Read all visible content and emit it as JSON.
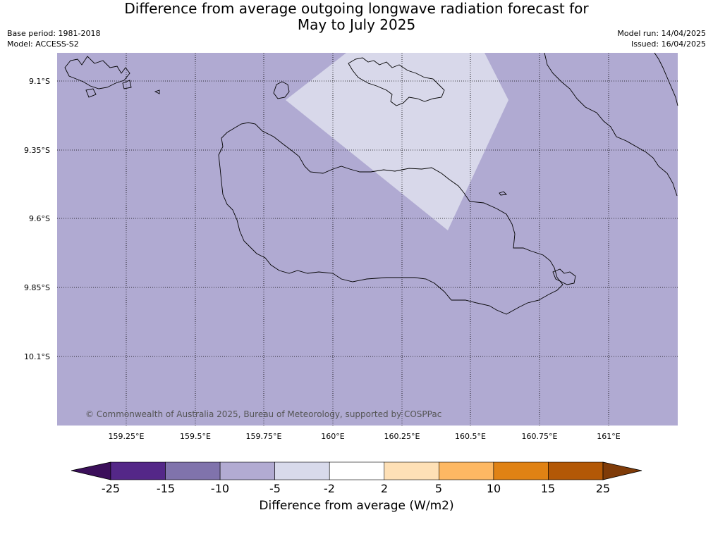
{
  "title": {
    "line1": "Difference from average outgoing longwave radiation forecast for",
    "line2": "May to July 2025"
  },
  "meta": {
    "base_period": "Base period: 1981-2018",
    "model": "Model: ACCESS-S2",
    "model_run": "Model run: 14/04/2025",
    "issued": "Issued: 16/04/2025"
  },
  "map": {
    "lat_ticks": [
      "9.1°S",
      "9.35°S",
      "9.6°S",
      "9.85°S",
      "10.1°S"
    ],
    "lon_ticks": [
      "159.25°E",
      "159.5°E",
      "159.75°E",
      "160°E",
      "160.25°E",
      "160.5°E",
      "160.75°E",
      "161°E"
    ],
    "background_category": "-10 to -5",
    "background_color": "#b0aad2",
    "anomaly_patch_category": "-5 to -2",
    "anomaly_patch_color": "#d8d8ea",
    "copyright": "© Commonwealth of Australia 2025, Bureau of Meteorology, supported by COSPPac"
  },
  "colorbar": {
    "label": "Difference from average (W/m2)",
    "ticks": [
      "-25",
      "-15",
      "-10",
      "-5",
      "-2",
      "2",
      "5",
      "10",
      "15",
      "25"
    ],
    "under_color": "#3b0f5a",
    "over_color": "#7f3b08",
    "colors": [
      "#542788",
      "#8073ac",
      "#b2abd2",
      "#d8daeb",
      "#ffffff",
      "#fee0b6",
      "#fdb863",
      "#e08214",
      "#b35806"
    ]
  }
}
